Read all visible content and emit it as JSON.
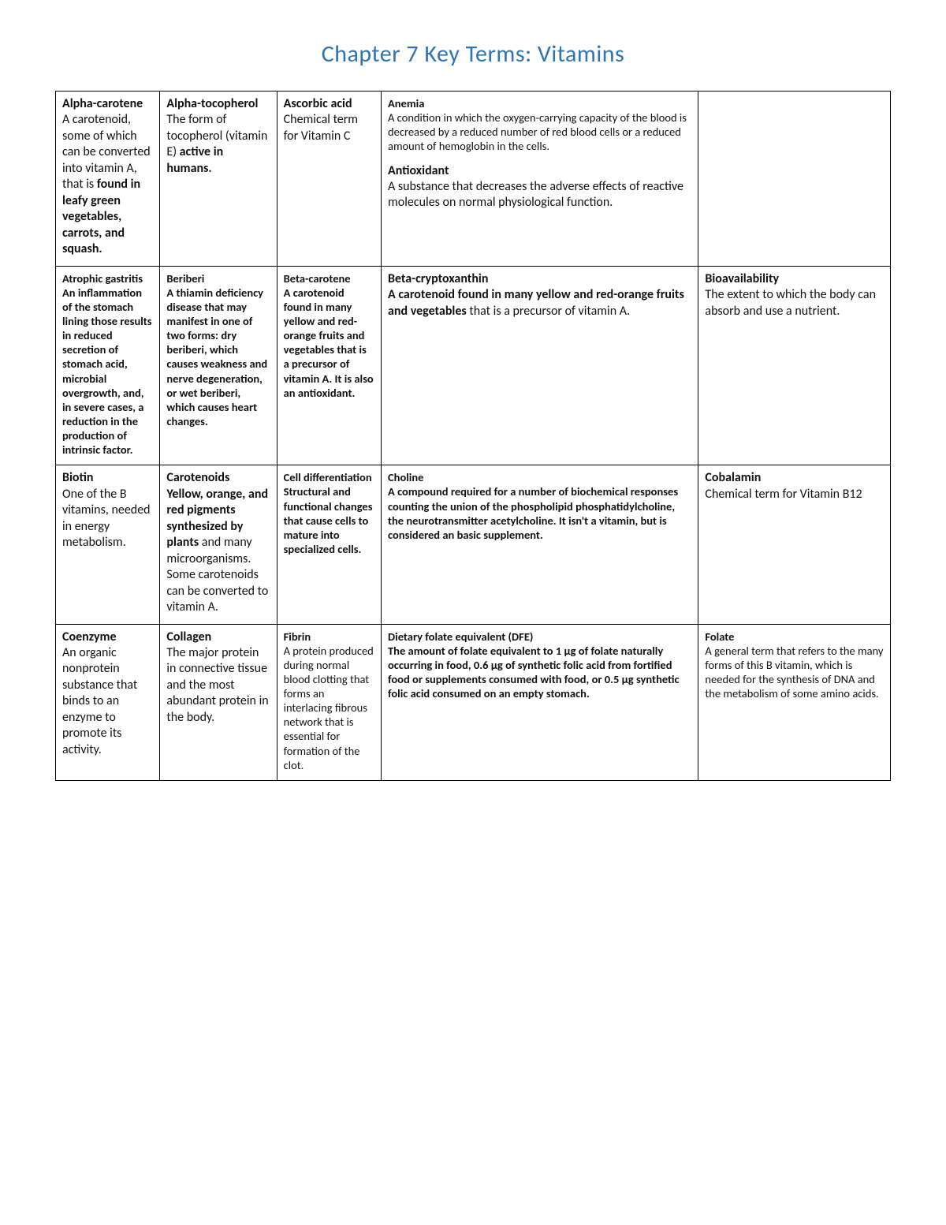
{
  "page": {
    "title": "Chapter 7 Key Terms: Vitamins",
    "title_color": "#2e74b5",
    "background": "#ffffff"
  },
  "table": {
    "col_widths_pct": [
      12.5,
      14,
      12.5,
      38,
      23
    ],
    "rows": [
      [
        {
          "term": "Alpha-carotene",
          "def_pre": "A carotenoid, some of which can be converted into vitamin A, that is ",
          "def_bold": "found in leafy green vegetables, carrots, and squash."
        },
        {
          "term": "Alpha-tocopherol",
          "def_pre": "The form of tocopherol (vitamin E) ",
          "def_bold": "active in humans."
        },
        {
          "term": "Ascorbic acid",
          "def": "Chemical term for Vitamin C"
        },
        {
          "multi": [
            {
              "term": "Anemia",
              "def": "A condition in which the oxygen-carrying capacity of the blood is decreased by a reduced number of red blood cells or a reduced amount of hemoglobin in the cells.",
              "small": true
            },
            {
              "term": "Antioxidant",
              "def": "A substance that decreases the adverse effects of reactive molecules on normal physiological function."
            }
          ]
        },
        {
          "empty": true
        }
      ],
      [
        {
          "term": "Atrophic gastritis",
          "def_bold": "An inflammation of the stomach lining those results in reduced secretion of stomach acid, microbial overgrowth, and, in severe cases, a reduction in the production of intrinsic factor.",
          "small": true
        },
        {
          "term": "Beriberi",
          "def_bold": "A thiamin deficiency disease that may manifest in one of two forms: dry beriberi, which causes weakness and nerve degeneration, or wet beriberi, which causes heart changes.",
          "small": true
        },
        {
          "term": "Beta-carotene",
          "def_bold": "A carotenoid found in many yellow and red-orange fruits and vegetables that is a precursor of vitamin A. It is also an antioxidant.",
          "small": true
        },
        {
          "term": "Beta-cryptoxanthin",
          "def_bold_pre": "A carotenoid found in many yellow and red-orange fruits and vegetables ",
          "def_tail": "that is a precursor of vitamin A."
        },
        {
          "term": "Bioavailability",
          "def": "The extent to which the body can absorb and use a nutrient."
        }
      ],
      [
        {
          "term": "Biotin",
          "def": "One of the B vitamins, needed in energy metabolism."
        },
        {
          "term": "Carotenoids",
          "def_bold_pre": "Yellow, orange, and red pigments synthesized by plants ",
          "def_tail": "and many microorganisms. Some carotenoids can be converted to vitamin A."
        },
        {
          "term": "Cell differentiation",
          "def_bold": "Structural and functional changes that cause cells to mature into specialized cells.",
          "small": true
        },
        {
          "term": "Choline",
          "def_bold_pre": "A compound required for a number of biochemical responses counting the union of the phospholipid phosphatidylcholine, the neurotransmitter acetylcholine. It isn't a vitamin, but is considered an basic supplement.",
          "small": true
        },
        {
          "term": "Cobalamin",
          "def": "Chemical term for Vitamin B12"
        }
      ],
      [
        {
          "term": "Coenzyme",
          "def": "An organic nonprotein substance that binds to an enzyme to promote its activity."
        },
        {
          "term": "Collagen",
          "def": "The major protein in connective tissue and the most abundant protein in the body."
        },
        {
          "term": "Fibrin",
          "def": "A protein produced during normal blood clotting that forms an interlacing fibrous network that is essential for formation of the clot.",
          "small": true
        },
        {
          "term": "Dietary folate equivalent (DFE)",
          "def_bold": "The amount of folate equivalent to 1 μg of folate naturally occurring in food, 0.6 μg of synthetic folic acid from fortified food or supplements consumed with food, or 0.5 μg synthetic folic acid consumed on an empty stomach.",
          "small": true
        },
        {
          "term": "Folate",
          "def": "A general term that refers to the many forms of this B vitamin, which is needed for the synthesis of DNA and the metabolism of some amino acids.",
          "small": true
        }
      ]
    ]
  }
}
